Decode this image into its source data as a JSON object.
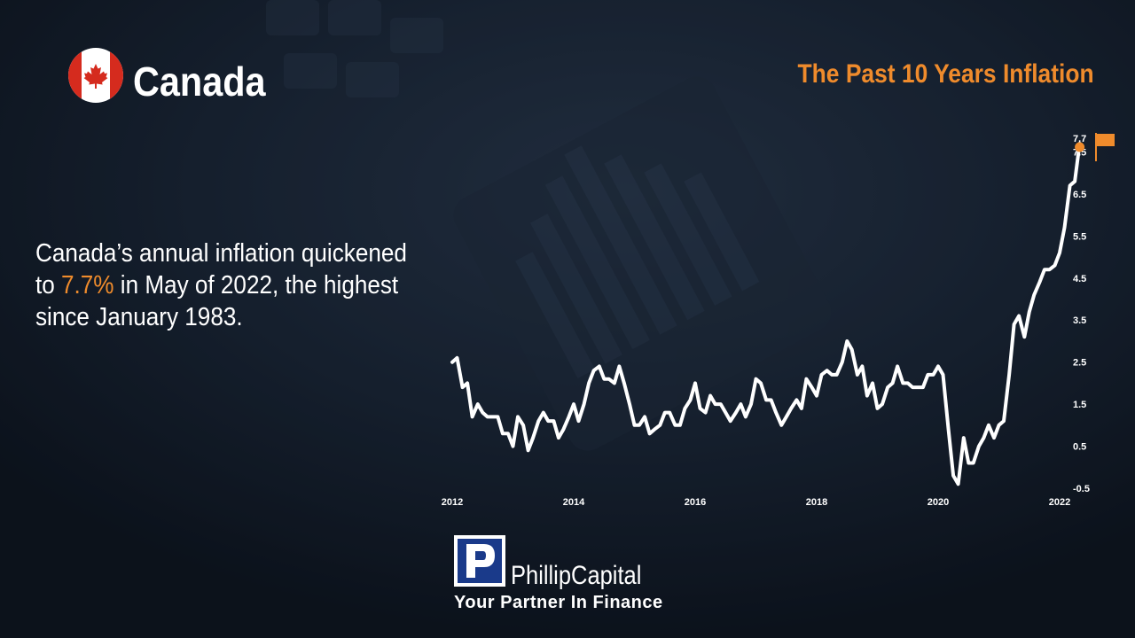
{
  "header": {
    "country": "Canada",
    "chart_title": "The Past 10 Years Inflation"
  },
  "description": {
    "before": "Canada’s annual inflation quickened to ",
    "highlight": "7.7%",
    "after": " in May of 2022, the highest since January 1983."
  },
  "branding": {
    "name": "PhillipCapital",
    "tagline": "Your Partner In Finance"
  },
  "colors": {
    "accent": "#ef8b2c",
    "line": "#ffffff",
    "background": "#121c2a",
    "flag_red": "#d52b1e"
  },
  "chart_data": {
    "type": "line",
    "title": "The Past 10 Years Inflation",
    "xlabel": "",
    "ylabel": "",
    "xlim": [
      2012,
      2022.4
    ],
    "ylim": [
      -0.5,
      7.7
    ],
    "x_ticks": [
      "2012",
      "2014",
      "2016",
      "2018",
      "2020",
      "2022"
    ],
    "y_ticks": [
      "7.7",
      "7.5",
      "6.5",
      "5.5",
      "4.5",
      "3.5",
      "2.5",
      "1.5",
      "0.5",
      "-0.5"
    ],
    "last_point_label": "7.7",
    "series": [
      {
        "x": [
          2012.0,
          2012.08,
          2012.17,
          2012.25,
          2012.33,
          2012.42,
          2012.5,
          2012.58,
          2012.67,
          2012.75,
          2012.83,
          2012.92,
          2013.0,
          2013.08,
          2013.17,
          2013.25,
          2013.33,
          2013.42,
          2013.5,
          2013.58,
          2013.67,
          2013.75,
          2013.83,
          2013.92,
          2014.0,
          2014.08,
          2014.17,
          2014.25,
          2014.33,
          2014.42,
          2014.5,
          2014.58,
          2014.67,
          2014.75,
          2014.83,
          2014.92,
          2015.0,
          2015.08,
          2015.17,
          2015.25,
          2015.33,
          2015.42,
          2015.5,
          2015.58,
          2015.67,
          2015.75,
          2015.83,
          2015.92,
          2016.0,
          2016.08,
          2016.17,
          2016.25,
          2016.33,
          2016.42,
          2016.5,
          2016.58,
          2016.67,
          2016.75,
          2016.83,
          2016.92,
          2017.0,
          2017.08,
          2017.17,
          2017.25,
          2017.33,
          2017.42,
          2017.5,
          2017.58,
          2017.67,
          2017.75,
          2017.83,
          2017.92,
          2018.0,
          2018.08,
          2018.17,
          2018.25,
          2018.33,
          2018.42,
          2018.5,
          2018.58,
          2018.67,
          2018.75,
          2018.83,
          2018.92,
          2019.0,
          2019.08,
          2019.17,
          2019.25,
          2019.33,
          2019.42,
          2019.5,
          2019.58,
          2019.67,
          2019.75,
          2019.83,
          2019.92,
          2020.0,
          2020.08,
          2020.17,
          2020.25,
          2020.33,
          2020.42,
          2020.5,
          2020.58,
          2020.67,
          2020.75,
          2020.83,
          2020.92,
          2021.0,
          2021.08,
          2021.17,
          2021.25,
          2021.33,
          2021.42,
          2021.5,
          2021.58,
          2021.67,
          2021.75,
          2021.83,
          2021.92,
          2022.0,
          2022.08,
          2022.17,
          2022.25,
          2022.33
        ],
        "values": [
          2.5,
          2.6,
          1.9,
          2.0,
          1.2,
          1.5,
          1.3,
          1.2,
          1.2,
          1.2,
          0.8,
          0.8,
          0.5,
          1.2,
          1.0,
          0.4,
          0.7,
          1.1,
          1.3,
          1.1,
          1.1,
          0.7,
          0.9,
          1.2,
          1.5,
          1.1,
          1.5,
          2.0,
          2.3,
          2.4,
          2.1,
          2.1,
          2.0,
          2.4,
          2.0,
          1.5,
          1.0,
          1.0,
          1.2,
          0.8,
          0.9,
          1.0,
          1.3,
          1.3,
          1.0,
          1.0,
          1.4,
          1.6,
          2.0,
          1.4,
          1.3,
          1.7,
          1.5,
          1.5,
          1.3,
          1.1,
          1.3,
          1.5,
          1.2,
          1.5,
          2.1,
          2.0,
          1.6,
          1.6,
          1.3,
          1.0,
          1.2,
          1.4,
          1.6,
          1.4,
          2.1,
          1.9,
          1.7,
          2.2,
          2.3,
          2.2,
          2.2,
          2.5,
          3.0,
          2.8,
          2.2,
          2.4,
          1.7,
          2.0,
          1.4,
          1.5,
          1.9,
          2.0,
          2.4,
          2.0,
          2.0,
          1.9,
          1.9,
          1.9,
          2.2,
          2.2,
          2.4,
          2.2,
          0.9,
          -0.2,
          -0.4,
          0.7,
          0.1,
          0.1,
          0.5,
          0.7,
          1.0,
          0.7,
          1.0,
          1.1,
          2.2,
          3.4,
          3.6,
          3.1,
          3.7,
          4.1,
          4.4,
          4.7,
          4.7,
          4.8,
          5.1,
          5.7,
          6.7,
          6.8,
          7.7
        ]
      }
    ]
  }
}
